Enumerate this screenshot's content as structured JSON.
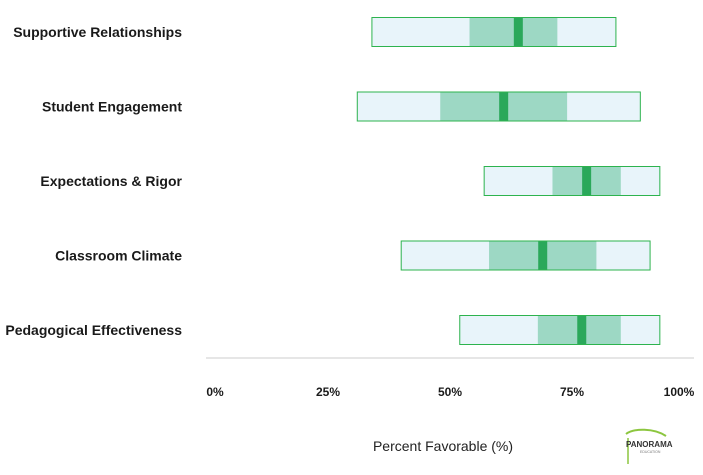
{
  "chart_data": {
    "type": "range-bar",
    "categories": [
      "Supportive Relationships",
      "Student Engagement",
      "Expectations & Rigor",
      "Classroom Climate",
      "Pedagogical Effectiveness"
    ],
    "series": [
      {
        "min": 34,
        "q1": 54,
        "median": 64,
        "q3": 72,
        "max": 84
      },
      {
        "min": 31,
        "q1": 48,
        "median": 61,
        "q3": 74,
        "max": 89
      },
      {
        "min": 57,
        "q1": 71,
        "median": 78,
        "q3": 85,
        "max": 93
      },
      {
        "min": 40,
        "q1": 58,
        "median": 69,
        "q3": 80,
        "max": 91
      },
      {
        "min": 52,
        "q1": 68,
        "median": 77,
        "q3": 85,
        "max": 93
      }
    ],
    "xlim": [
      0,
      100
    ],
    "x_ticks": [
      "0%",
      "25%",
      "50%",
      "75%",
      "100%"
    ],
    "xlabel": "Percent Favorable (%)",
    "colors": {
      "outer_fill": "#e8f4fa",
      "outer_stroke": "#2db34e",
      "inner_fill": "#9dd8c4",
      "median": "#2aa85a"
    }
  },
  "logo": {
    "text": "PANORAMA",
    "sub": "EDUCATION"
  }
}
